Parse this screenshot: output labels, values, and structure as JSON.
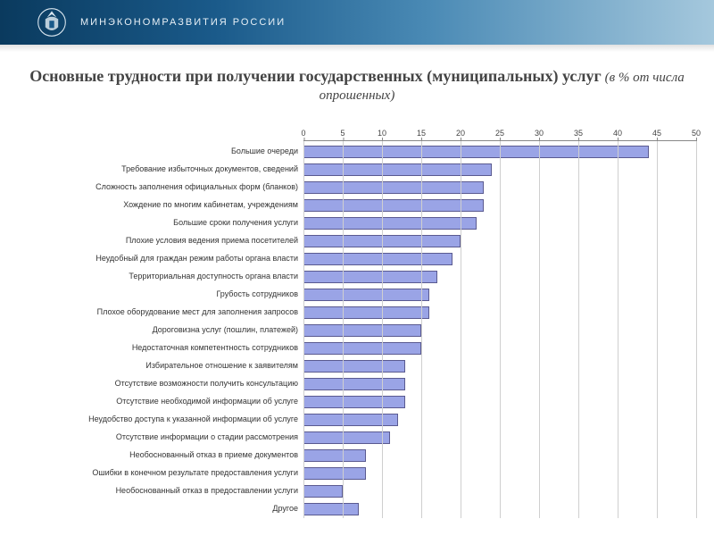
{
  "header": {
    "org": "МИНЭКОНОМРАЗВИТИЯ РОССИИ",
    "bg_gradient": [
      "#0a3a5e",
      "#1a5a8a",
      "#4a8ab5",
      "#a5c8dd"
    ],
    "text_color": "#e8f0f6"
  },
  "title": {
    "main": "Основные трудности при получении государственных (муниципальных) услуг",
    "sub": "(в % от числа опрошенных)",
    "color": "#444444",
    "font_family": "Georgia, Times New Roman, serif",
    "main_fontsize": 18,
    "sub_fontsize": 15
  },
  "chart": {
    "type": "bar-horizontal",
    "xlim": [
      0,
      50
    ],
    "xtick_step": 5,
    "xticks": [
      0,
      5,
      10,
      15,
      20,
      25,
      30,
      35,
      40,
      45,
      50
    ],
    "bar_color": "#9aa4e6",
    "bar_border_color": "#5a5a90",
    "grid_color": "#cfcfcf",
    "axis_color": "#888888",
    "background_color": "#ffffff",
    "label_fontsize": 9,
    "tick_fontsize": 9,
    "bar_height_ratio": 0.66,
    "categories": [
      "Большие очереди",
      "Требование избыточных документов, сведений",
      "Сложность заполнения официальных форм (бланков)",
      "Хождение по многим кабинетам, учреждениям",
      "Большие сроки получения услуги",
      "Плохие условия ведения приема посетителей",
      "Неудобный для граждан режим работы органа власти",
      "Территориальная доступность органа власти",
      "Грубость сотрудников",
      "Плохое оборудование мест для заполнения запросов",
      "Дороговизна услуг (пошлин, платежей)",
      "Недостаточная компетентность сотрудников",
      "Избирательное отношение к заявителям",
      "Отсутствие возможности получить консультацию",
      "Отсутствие необходимой информации об услуге",
      "Неудобство доступа к указанной информации об услуге",
      "Отсутствие информации о стадии рассмотрения",
      "Необоснованный отказ в приеме документов",
      "Ошибки в конечном результате предоставления услуги",
      "Необоснованный отказ в предоставлении услуги",
      "Другое"
    ],
    "values": [
      44,
      24,
      23,
      23,
      22,
      20,
      19,
      17,
      16,
      16,
      15,
      15,
      13,
      13,
      13,
      12,
      11,
      8,
      8,
      5,
      7
    ]
  }
}
